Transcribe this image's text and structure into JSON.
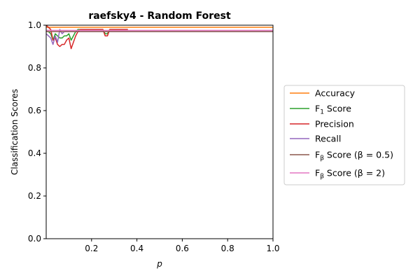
{
  "chart_data": {
    "type": "line",
    "title": "raefsky4 - Random Forest",
    "xlabel": "p",
    "ylabel": "Classification Scores",
    "xlim": [
      0.0,
      1.0
    ],
    "ylim": [
      0.0,
      1.0
    ],
    "xticks": [
      0.2,
      0.4,
      0.6,
      0.8,
      1.0
    ],
    "xtick_labels": [
      "0.2",
      "0.4",
      "0.6",
      "0.8",
      "1.0"
    ],
    "yticks": [
      0.0,
      0.2,
      0.4,
      0.6,
      0.8,
      1.0
    ],
    "ytick_labels": [
      "0.0",
      "0.2",
      "0.4",
      "0.6",
      "0.8",
      "1.0"
    ],
    "grid": false,
    "legend_position": "right, outside the axes",
    "series": [
      {
        "name": "Accuracy",
        "color": "#ff7f0e",
        "x": [
          0.0,
          0.02,
          0.04,
          0.06,
          0.08,
          0.1,
          0.11,
          0.13,
          0.15,
          0.2,
          0.25,
          0.26,
          0.28,
          0.3,
          0.35,
          0.36,
          1.0
        ],
        "y": [
          0.99,
          0.99,
          0.99,
          0.99,
          0.99,
          0.99,
          0.99,
          0.99,
          0.99,
          0.99,
          0.99,
          0.99,
          0.99,
          0.99,
          0.99,
          0.99,
          0.99
        ]
      },
      {
        "name": "F_1 Score",
        "color": "#2ca02c",
        "x": [
          0.0,
          0.01,
          0.02,
          0.03,
          0.04,
          0.05,
          0.06,
          0.07,
          0.08,
          0.09,
          0.1,
          0.11,
          0.12,
          0.13,
          0.14,
          0.15,
          0.2,
          0.25,
          0.26,
          0.27,
          0.28,
          0.3,
          0.35,
          0.36
        ],
        "y": [
          0.97,
          0.97,
          0.96,
          0.93,
          0.96,
          0.95,
          0.94,
          0.94,
          0.95,
          0.95,
          0.96,
          0.93,
          0.95,
          0.97,
          0.98,
          0.98,
          0.98,
          0.98,
          0.96,
          0.96,
          0.98,
          0.98,
          0.98,
          0.98
        ]
      },
      {
        "name": "Precision",
        "color": "#d62728",
        "x": [
          0.0,
          0.01,
          0.02,
          0.03,
          0.04,
          0.05,
          0.06,
          0.07,
          0.08,
          0.09,
          0.1,
          0.11,
          0.12,
          0.13,
          0.14,
          0.15,
          0.2,
          0.25,
          0.26,
          0.27,
          0.28,
          0.3,
          0.35,
          0.36
        ],
        "y": [
          1.0,
          0.99,
          0.98,
          0.93,
          0.94,
          0.91,
          0.9,
          0.91,
          0.91,
          0.93,
          0.94,
          0.89,
          0.92,
          0.95,
          0.97,
          0.98,
          0.98,
          0.98,
          0.95,
          0.95,
          0.98,
          0.98,
          0.98,
          0.98
        ]
      },
      {
        "name": "Recall",
        "color": "#9467bd",
        "x": [
          0.0,
          0.02,
          0.03,
          0.04,
          0.05,
          0.06,
          0.07,
          0.08,
          0.1,
          0.15,
          0.2,
          0.3,
          0.36,
          1.0
        ],
        "y": [
          0.96,
          0.94,
          0.91,
          0.95,
          0.92,
          0.98,
          0.96,
          0.97,
          0.97,
          0.97,
          0.97,
          0.97,
          0.97,
          0.97
        ]
      },
      {
        "name": "F_β Score (β=0.5)",
        "color": "#8c564b",
        "x": [
          0.0,
          0.1,
          0.2,
          0.3,
          0.4,
          0.5,
          0.6,
          0.7,
          0.8,
          0.9,
          1.0
        ],
        "y": [
          0.97,
          0.97,
          0.97,
          0.97,
          0.97,
          0.97,
          0.97,
          0.97,
          0.97,
          0.97,
          0.97
        ]
      },
      {
        "name": "F_β Score (β=2)",
        "color": "#e377c2",
        "x": [
          0.0,
          0.1,
          0.2,
          0.3,
          0.4,
          0.5,
          0.6,
          0.7,
          0.8,
          0.9,
          1.0
        ],
        "y": [
          0.976,
          0.976,
          0.976,
          0.976,
          0.976,
          0.976,
          0.976,
          0.976,
          0.976,
          0.976,
          0.976
        ]
      }
    ],
    "legend": [
      {
        "pre": "Accuracy",
        "sub": "",
        "post": ""
      },
      {
        "pre": "F",
        "sub": "1",
        "post": " Score"
      },
      {
        "pre": "Precision",
        "sub": "",
        "post": ""
      },
      {
        "pre": "Recall",
        "sub": "",
        "post": ""
      },
      {
        "pre": "F",
        "sub": "β",
        "post": " Score (β = 0.5)"
      },
      {
        "pre": "F",
        "sub": "β",
        "post": " Score (β = 2)"
      }
    ]
  }
}
